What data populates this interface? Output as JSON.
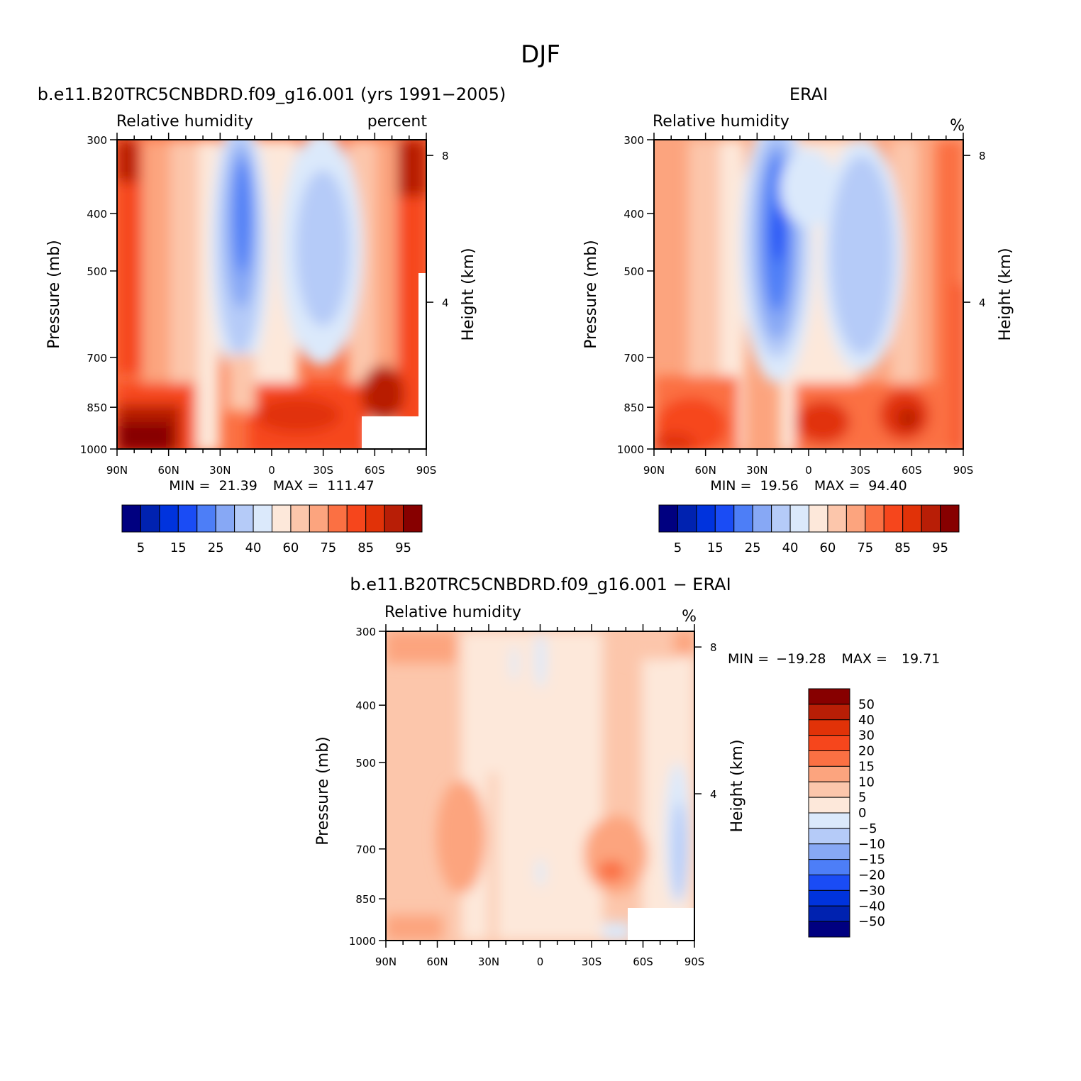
{
  "figure": {
    "title": "DJF"
  },
  "colors": {
    "abs": [
      "#000080",
      "#0022b0",
      "#0033dd",
      "#1a4cf5",
      "#4d7ef7",
      "#87a8f5",
      "#b5cbf8",
      "#dbe9fb",
      "#fde8da",
      "#fcc6ab",
      "#fca47e",
      "#fb7043",
      "#f6461c",
      "#e13208",
      "#b81e06",
      "#870000"
    ],
    "diff": [
      "#000080",
      "#0022b0",
      "#0033dd",
      "#1a4cf5",
      "#4d7ef7",
      "#87a8f5",
      "#b5cbf8",
      "#dbe9fb",
      "#fde8da",
      "#fcc6ab",
      "#fca47e",
      "#fb7043",
      "#f6461c",
      "#e13208",
      "#b81e06",
      "#870000"
    ]
  },
  "chart_data": [
    {
      "type": "heatmap",
      "title": "b.e11.B20TRC5CNBDRD.f09_g16.001 (yrs 1991−2005)",
      "left_subtitle": "Relative humidity",
      "right_subtitle": "percent",
      "ylabel": "Pressure (mb)",
      "y2label": "Height (km)",
      "x_ticks": [
        "90N",
        "60N",
        "30N",
        "0",
        "30S",
        "60S",
        "90S"
      ],
      "y_ticks": [
        "300",
        "400",
        "500",
        "700",
        "850",
        "1000"
      ],
      "y2_ticks": [
        "8",
        "4"
      ],
      "min_label": "MIN =",
      "min_value": "21.39",
      "max_label": "MAX =",
      "max_value": "111.47",
      "colorbar_labels": [
        "5",
        "15",
        "25",
        "40",
        "60",
        "75",
        "85",
        "95"
      ]
    },
    {
      "type": "heatmap",
      "title": "ERAI",
      "left_subtitle": "Relative humidity",
      "right_subtitle": "%",
      "ylabel": "Pressure (mb)",
      "y2label": "Height (km)",
      "x_ticks": [
        "90N",
        "60N",
        "30N",
        "0",
        "30S",
        "60S",
        "90S"
      ],
      "y_ticks": [
        "300",
        "400",
        "500",
        "700",
        "850",
        "1000"
      ],
      "y2_ticks": [
        "8",
        "4"
      ],
      "min_label": "MIN =",
      "min_value": "19.56",
      "max_label": "MAX =",
      "max_value": "94.40",
      "colorbar_labels": [
        "5",
        "15",
        "25",
        "40",
        "60",
        "75",
        "85",
        "95"
      ]
    },
    {
      "type": "heatmap",
      "title": "b.e11.B20TRC5CNBDRD.f09_g16.001 − ERAI",
      "left_subtitle": "Relative humidity",
      "right_subtitle": "%",
      "ylabel": "Pressure (mb)",
      "y2label": "Height (km)",
      "x_ticks": [
        "90N",
        "60N",
        "30N",
        "0",
        "30S",
        "60S",
        "90S"
      ],
      "y_ticks": [
        "300",
        "400",
        "500",
        "700",
        "850",
        "1000"
      ],
      "y2_ticks": [
        "8",
        "4"
      ],
      "min_label": "MIN =",
      "min_value": "−19.28",
      "max_label": "MAX =",
      "max_value": "19.71",
      "colorbar_labels": [
        "50",
        "40",
        "30",
        "20",
        "15",
        "10",
        "5",
        "0",
        "−5",
        "−10",
        "−15",
        "−20",
        "−30",
        "−40",
        "−50"
      ]
    }
  ]
}
